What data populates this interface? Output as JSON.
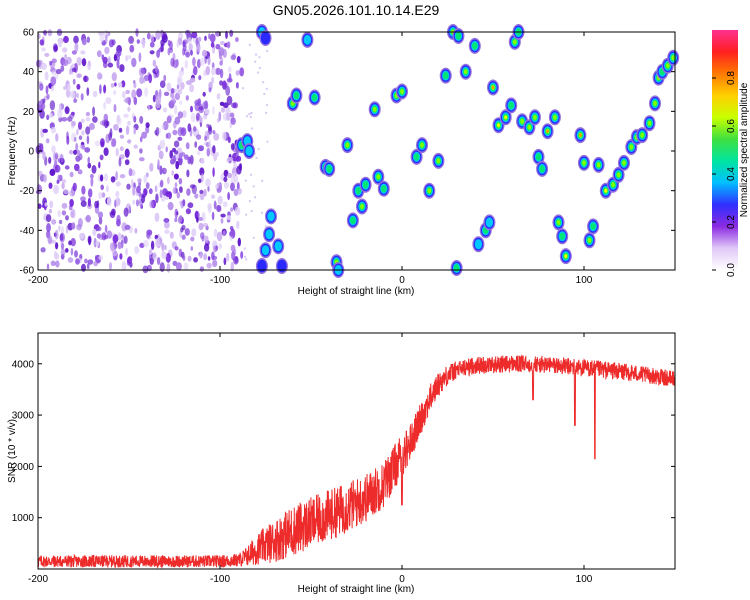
{
  "chart_data": [
    {
      "type": "heatmap",
      "title": "GN05.2026.101.10.14.E29",
      "xlabel": "Height of straight line (km)",
      "ylabel": "Frequency (Hz)",
      "xlim": [
        -200,
        150
      ],
      "ylim": [
        -60,
        60
      ],
      "xticks": [
        -200,
        -100,
        0,
        100
      ],
      "xtick_labels": [
        "-200",
        "-100",
        "0",
        "100"
      ],
      "yticks": [
        -60,
        -40,
        -20,
        0,
        20,
        40,
        60
      ],
      "ytick_labels": [
        "-60",
        "-40",
        "-20",
        "0",
        "20",
        "40",
        "60"
      ],
      "colorbar": {
        "label": "Normalized spectral amplitude",
        "range": [
          0,
          1
        ],
        "ticks": [
          0,
          0.2,
          0.4,
          0.6,
          0.8
        ],
        "tick_labels": [
          "0.0",
          "0.2",
          "0.4",
          "0.6",
          "0.8"
        ],
        "colors": [
          "#ffffff",
          "#9370db",
          "#7b00d4",
          "#2a2aff",
          "#00c8ff",
          "#00e676",
          "#7fff00",
          "#ffff00",
          "#ff9800",
          "#ff2020",
          "#ff40a0"
        ]
      },
      "noise_region_x": [
        -200,
        -88
      ],
      "blobs": [
        {
          "x": -88,
          "y": 3,
          "v": 0.45
        },
        {
          "x": -85,
          "y": 5,
          "v": 0.4
        },
        {
          "x": -84,
          "y": 0,
          "v": 0.35
        },
        {
          "x": -77,
          "y": 60,
          "v": 0.35
        },
        {
          "x": -75,
          "y": 57,
          "v": 0.3
        },
        {
          "x": -72,
          "y": -33,
          "v": 0.35
        },
        {
          "x": -73,
          "y": -42,
          "v": 0.35
        },
        {
          "x": -75,
          "y": -50,
          "v": 0.4
        },
        {
          "x": -77,
          "y": -58,
          "v": 0.3
        },
        {
          "x": -68,
          "y": -48,
          "v": 0.35
        },
        {
          "x": -66,
          "y": -58,
          "v": 0.3
        },
        {
          "x": -60,
          "y": 24,
          "v": 0.55
        },
        {
          "x": -58,
          "y": 28,
          "v": 0.5
        },
        {
          "x": -52,
          "y": 56,
          "v": 0.4
        },
        {
          "x": -48,
          "y": 27,
          "v": 0.45
        },
        {
          "x": -42,
          "y": -8,
          "v": 0.5
        },
        {
          "x": -40,
          "y": -9,
          "v": 0.45
        },
        {
          "x": -36,
          "y": -56,
          "v": 0.55
        },
        {
          "x": -35,
          "y": -60,
          "v": 0.4
        },
        {
          "x": -30,
          "y": 3,
          "v": 0.6
        },
        {
          "x": -27,
          "y": -35,
          "v": 0.45
        },
        {
          "x": -24,
          "y": -20,
          "v": 0.5
        },
        {
          "x": -22,
          "y": -28,
          "v": 0.55
        },
        {
          "x": -20,
          "y": -17,
          "v": 0.5
        },
        {
          "x": -15,
          "y": 21,
          "v": 0.55
        },
        {
          "x": -13,
          "y": -13,
          "v": 0.6
        },
        {
          "x": -10,
          "y": -19,
          "v": 0.5
        },
        {
          "x": -3,
          "y": 28,
          "v": 0.55
        },
        {
          "x": 0,
          "y": 30,
          "v": 0.6
        },
        {
          "x": 8,
          "y": -3,
          "v": 0.45
        },
        {
          "x": 11,
          "y": 3,
          "v": 0.55
        },
        {
          "x": 15,
          "y": -20,
          "v": 0.6
        },
        {
          "x": 20,
          "y": -5,
          "v": 0.55
        },
        {
          "x": 24,
          "y": 38,
          "v": 0.5
        },
        {
          "x": 28,
          "y": 60,
          "v": 0.55
        },
        {
          "x": 31,
          "y": 58,
          "v": 0.45
        },
        {
          "x": 30,
          "y": -59,
          "v": 0.45
        },
        {
          "x": 35,
          "y": 40,
          "v": 0.55
        },
        {
          "x": 40,
          "y": 53,
          "v": 0.5
        },
        {
          "x": 42,
          "y": -47,
          "v": 0.4
        },
        {
          "x": 46,
          "y": -40,
          "v": 0.45
        },
        {
          "x": 48,
          "y": -36,
          "v": 0.4
        },
        {
          "x": 50,
          "y": 32,
          "v": 0.75
        },
        {
          "x": 53,
          "y": 13,
          "v": 0.65
        },
        {
          "x": 57,
          "y": 17,
          "v": 0.65
        },
        {
          "x": 60,
          "y": 23,
          "v": 0.5
        },
        {
          "x": 62,
          "y": 55,
          "v": 0.6
        },
        {
          "x": 64,
          "y": 60,
          "v": 0.45
        },
        {
          "x": 66,
          "y": 15,
          "v": 0.55
        },
        {
          "x": 70,
          "y": 12,
          "v": 0.6
        },
        {
          "x": 73,
          "y": 17,
          "v": 0.6
        },
        {
          "x": 75,
          "y": -3,
          "v": 0.5
        },
        {
          "x": 77,
          "y": -9,
          "v": 0.5
        },
        {
          "x": 80,
          "y": 10,
          "v": 0.85
        },
        {
          "x": 84,
          "y": 17,
          "v": 0.6
        },
        {
          "x": 86,
          "y": -36,
          "v": 0.55
        },
        {
          "x": 88,
          "y": -43,
          "v": 0.5
        },
        {
          "x": 90,
          "y": -53,
          "v": 0.7
        },
        {
          "x": 98,
          "y": 8,
          "v": 0.75
        },
        {
          "x": 100,
          "y": -6,
          "v": 0.55
        },
        {
          "x": 103,
          "y": -45,
          "v": 0.55
        },
        {
          "x": 105,
          "y": -38,
          "v": 0.5
        },
        {
          "x": 108,
          "y": -7,
          "v": 0.6
        },
        {
          "x": 112,
          "y": -20,
          "v": 0.65
        },
        {
          "x": 116,
          "y": -17,
          "v": 0.55
        },
        {
          "x": 119,
          "y": -12,
          "v": 0.6
        },
        {
          "x": 122,
          "y": -6,
          "v": 0.55
        },
        {
          "x": 126,
          "y": 2,
          "v": 0.6
        },
        {
          "x": 129,
          "y": 7,
          "v": 0.6
        },
        {
          "x": 132,
          "y": 8,
          "v": 0.55
        },
        {
          "x": 136,
          "y": 14,
          "v": 0.55
        },
        {
          "x": 139,
          "y": 24,
          "v": 0.6
        },
        {
          "x": 141,
          "y": 37,
          "v": 0.55
        },
        {
          "x": 143,
          "y": 40,
          "v": 0.5
        },
        {
          "x": 146,
          "y": 43,
          "v": 0.6
        },
        {
          "x": 149,
          "y": 47,
          "v": 0.55
        }
      ]
    },
    {
      "type": "line",
      "title": "",
      "xlabel": "Height of straight line (km)",
      "ylabel": "SNR (10 * v/v)",
      "xlim": [
        -200,
        150
      ],
      "ylim": [
        0,
        4600
      ],
      "xticks": [
        -200,
        -100,
        0,
        100
      ],
      "xtick_labels": [
        "-200",
        "-100",
        "0",
        "100"
      ],
      "yticks": [
        1000,
        2000,
        3000,
        4000
      ],
      "ytick_labels": [
        "1000",
        "2000",
        "3000",
        "4000"
      ],
      "series": [
        {
          "name": "SNR",
          "color": "#ee2b2b",
          "envelope_x": [
            -200,
            -100,
            -90,
            -85,
            -80,
            -70,
            -60,
            -50,
            -40,
            -30,
            -20,
            -10,
            -5,
            0,
            5,
            10,
            15,
            20,
            25,
            30,
            40,
            60,
            80,
            100,
            120,
            140,
            150
          ],
          "envelope_y": [
            150,
            150,
            170,
            250,
            380,
            550,
            750,
            900,
            1050,
            1200,
            1380,
            1650,
            1950,
            2200,
            2500,
            2900,
            3300,
            3600,
            3780,
            3880,
            3970,
            4000,
            3980,
            3920,
            3850,
            3750,
            3700
          ],
          "noise_amplitude": [
            120,
            120,
            130,
            200,
            300,
            420,
            500,
            500,
            500,
            500,
            480,
            460,
            450,
            420,
            360,
            320,
            280,
            240,
            200,
            180,
            170,
            170,
            170,
            170,
            170,
            160,
            160
          ],
          "dips": [
            {
              "x": 0,
              "y": 1250
            },
            {
              "x": 95,
              "y": 2800
            },
            {
              "x": 106,
              "y": 2150
            },
            {
              "x": 72,
              "y": 3300
            }
          ]
        }
      ]
    }
  ]
}
